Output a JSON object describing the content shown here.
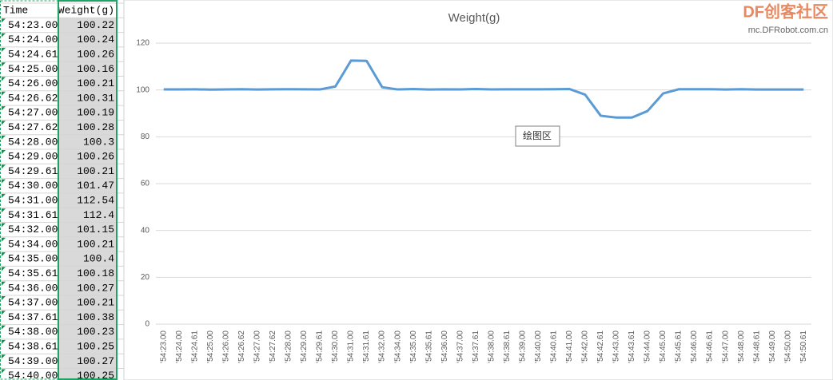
{
  "table": {
    "header": [
      "Time",
      "Weight(g)"
    ],
    "rows": [
      [
        "54:23.00",
        "100.22"
      ],
      [
        "54:24.00",
        "100.24"
      ],
      [
        "54:24.61",
        "100.26"
      ],
      [
        "54:25.00",
        "100.16"
      ],
      [
        "54:26.00",
        "100.21"
      ],
      [
        "54:26.62",
        "100.31"
      ],
      [
        "54:27.00",
        "100.19"
      ],
      [
        "54:27.62",
        "100.28"
      ],
      [
        "54:28.00",
        "100.3"
      ],
      [
        "54:29.00",
        "100.26"
      ],
      [
        "54:29.61",
        "100.21"
      ],
      [
        "54:30.00",
        "101.47"
      ],
      [
        "54:31.00",
        "112.54"
      ],
      [
        "54:31.61",
        "112.4"
      ],
      [
        "54:32.00",
        "101.15"
      ],
      [
        "54:34.00",
        "100.21"
      ],
      [
        "54:35.00",
        "100.4"
      ],
      [
        "54:35.61",
        "100.18"
      ],
      [
        "54:36.00",
        "100.27"
      ],
      [
        "54:37.00",
        "100.21"
      ],
      [
        "54:37.61",
        "100.38"
      ],
      [
        "54:38.00",
        "100.23"
      ],
      [
        "54:38.61",
        "100.25"
      ],
      [
        "54:39.00",
        "100.27"
      ],
      [
        "54:40.00",
        "100.25"
      ]
    ]
  },
  "chart_data": {
    "type": "line",
    "title": "Weight(g)",
    "categories": [
      "'54:23.00",
      "'54:24.00",
      "'54:24.61",
      "'54:25.00",
      "'54:26.00",
      "'54:26.62",
      "'54:27.00",
      "'54:27.62",
      "'54:28.00",
      "'54:29.00",
      "'54:29.61",
      "'54:30.00",
      "'54:31.00",
      "'54:31.61",
      "'54:32.00",
      "'54:34.00",
      "'54:35.00",
      "'54:35.61",
      "'54:36.00",
      "'54:37.00",
      "'54:37.61",
      "'54:38.00",
      "'54:38.61",
      "'54:39.00",
      "'54:40.00",
      "'54:40.61",
      "'54:41.00",
      "'54:42.00",
      "'54:42.61",
      "'54:43.00",
      "'54:43.61",
      "'54:44.00",
      "'54:45.00",
      "'54:45.61",
      "'54:46.00",
      "'54:46.61",
      "'54:47.00",
      "'54:48.00",
      "'54:48.61",
      "'54:49.00",
      "'54:50.00",
      "'54:50.61"
    ],
    "series": [
      {
        "name": "Weight(g)",
        "color": "#5b9bd5",
        "values": [
          100.22,
          100.24,
          100.26,
          100.16,
          100.21,
          100.31,
          100.19,
          100.28,
          100.3,
          100.26,
          100.21,
          101.47,
          112.54,
          112.4,
          101.15,
          100.21,
          100.4,
          100.18,
          100.27,
          100.21,
          100.38,
          100.23,
          100.25,
          100.27,
          100.25,
          100.3,
          100.4,
          98,
          89,
          88.2,
          88.2,
          91,
          98.5,
          100.3,
          100.3,
          100.3,
          100.2,
          100.3,
          100.2,
          100.2,
          100.2,
          100.2
        ]
      }
    ],
    "ylim": [
      0,
      120
    ],
    "yticks": [
      0,
      20,
      40,
      60,
      80,
      100,
      120
    ],
    "grid": true,
    "tooltip": "绘图区"
  },
  "watermark": {
    "logo": "DF创客社区",
    "url": "mc.DFRobot.com.cn"
  }
}
